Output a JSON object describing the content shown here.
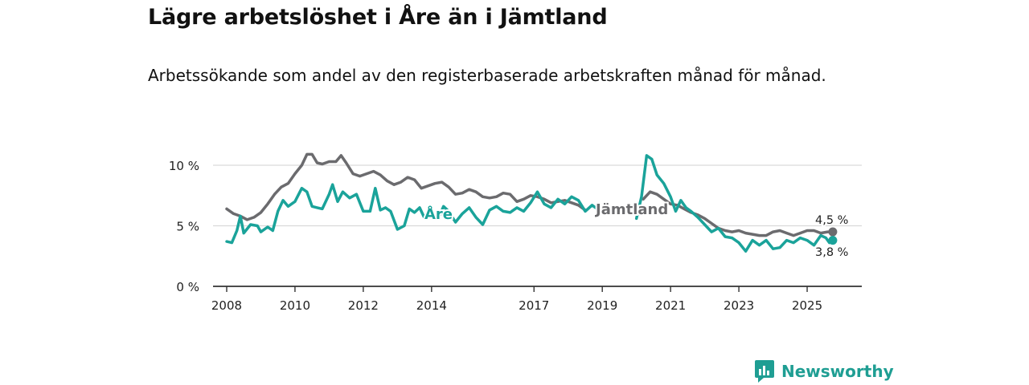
{
  "header": {
    "title": "Lägre arbetslöshet i Åre än i Jämtland",
    "subtitle": "Arbetssökande som andel av den registerbaserade arbetskraften månad för månad."
  },
  "brand": {
    "name": "Newsworthy"
  },
  "colors": {
    "are": "#1aa39a",
    "jamtland": "#6b6b6e",
    "grid": "#d9d9d9",
    "axis": "#333333",
    "brand": "#1f9e93"
  },
  "chart_data": {
    "type": "line",
    "title": "Lägre arbetslöshet i Åre än i Jämtland",
    "subtitle": "Arbetssökande som andel av den registerbaserade arbetskraften månad för månad.",
    "xlabel": "",
    "ylabel": "",
    "xlim": [
      2007.6,
      2026.6
    ],
    "ylim": [
      0,
      10
    ],
    "y_ticks": [
      0,
      5,
      10
    ],
    "y_tick_labels": [
      "0 %",
      "5 %",
      "10 %"
    ],
    "x_ticks": [
      2008,
      2010,
      2012,
      2014,
      2017,
      2019,
      2021,
      2023,
      2025
    ],
    "x_tick_labels": [
      "2008",
      "2010",
      "2012",
      "2014",
      "2017",
      "2019",
      "2021",
      "2023",
      "2025"
    ],
    "grid": true,
    "series": [
      {
        "name": "Jämtland",
        "label": "Jämtland",
        "color": "#6b6b6e",
        "end_label": "4,5 %",
        "points": [
          [
            2008.0,
            6.4
          ],
          [
            2008.2,
            6.0
          ],
          [
            2008.4,
            5.8
          ],
          [
            2008.6,
            5.5
          ],
          [
            2008.8,
            5.7
          ],
          [
            2009.0,
            6.1
          ],
          [
            2009.2,
            6.8
          ],
          [
            2009.4,
            7.6
          ],
          [
            2009.6,
            8.2
          ],
          [
            2009.8,
            8.5
          ],
          [
            2010.0,
            9.3
          ],
          [
            2010.2,
            10.0
          ],
          [
            2010.35,
            10.9
          ],
          [
            2010.5,
            10.9
          ],
          [
            2010.65,
            10.2
          ],
          [
            2010.8,
            10.1
          ],
          [
            2011.0,
            10.3
          ],
          [
            2011.2,
            10.3
          ],
          [
            2011.35,
            10.8
          ],
          [
            2011.5,
            10.2
          ],
          [
            2011.7,
            9.3
          ],
          [
            2011.9,
            9.1
          ],
          [
            2012.1,
            9.3
          ],
          [
            2012.3,
            9.5
          ],
          [
            2012.5,
            9.2
          ],
          [
            2012.7,
            8.7
          ],
          [
            2012.9,
            8.4
          ],
          [
            2013.1,
            8.6
          ],
          [
            2013.3,
            9.0
          ],
          [
            2013.5,
            8.8
          ],
          [
            2013.7,
            8.1
          ],
          [
            2013.9,
            8.3
          ],
          [
            2014.1,
            8.5
          ],
          [
            2014.3,
            8.6
          ],
          [
            2014.5,
            8.2
          ],
          [
            2014.7,
            7.6
          ],
          [
            2014.9,
            7.7
          ],
          [
            2015.1,
            8.0
          ],
          [
            2015.3,
            7.8
          ],
          [
            2015.5,
            7.4
          ],
          [
            2015.7,
            7.3
          ],
          [
            2015.9,
            7.4
          ],
          [
            2016.1,
            7.7
          ],
          [
            2016.3,
            7.6
          ],
          [
            2016.5,
            7.0
          ],
          [
            2016.7,
            7.2
          ],
          [
            2016.9,
            7.5
          ],
          [
            2017.1,
            7.4
          ],
          [
            2017.3,
            7.2
          ],
          [
            2017.5,
            6.9
          ],
          [
            2017.7,
            7.0
          ],
          [
            2017.9,
            7.1
          ],
          [
            2018.1,
            6.9
          ],
          [
            2018.3,
            6.7
          ],
          [
            2018.5,
            6.3
          ],
          [
            2020.2,
            7.2
          ],
          [
            2020.4,
            7.8
          ],
          [
            2020.6,
            7.6
          ],
          [
            2020.8,
            7.2
          ],
          [
            2021.0,
            6.8
          ],
          [
            2021.2,
            6.7
          ],
          [
            2021.4,
            6.4
          ],
          [
            2021.6,
            6.1
          ],
          [
            2021.8,
            5.9
          ],
          [
            2022.0,
            5.6
          ],
          [
            2022.2,
            5.2
          ],
          [
            2022.4,
            4.8
          ],
          [
            2022.6,
            4.6
          ],
          [
            2022.8,
            4.5
          ],
          [
            2023.0,
            4.6
          ],
          [
            2023.2,
            4.4
          ],
          [
            2023.4,
            4.3
          ],
          [
            2023.6,
            4.2
          ],
          [
            2023.8,
            4.2
          ],
          [
            2024.0,
            4.5
          ],
          [
            2024.2,
            4.6
          ],
          [
            2024.4,
            4.4
          ],
          [
            2024.6,
            4.2
          ],
          [
            2024.8,
            4.4
          ],
          [
            2025.0,
            4.6
          ],
          [
            2025.2,
            4.6
          ],
          [
            2025.4,
            4.4
          ],
          [
            2025.6,
            4.5
          ],
          [
            2025.75,
            4.5
          ]
        ]
      },
      {
        "name": "Åre",
        "label": "Åre",
        "color": "#1aa39a",
        "end_label": "3,8 %",
        "points": [
          [
            2008.0,
            3.7
          ],
          [
            2008.15,
            3.6
          ],
          [
            2008.3,
            4.6
          ],
          [
            2008.4,
            5.8
          ],
          [
            2008.5,
            4.4
          ],
          [
            2008.7,
            5.1
          ],
          [
            2008.9,
            5.0
          ],
          [
            2009.0,
            4.5
          ],
          [
            2009.2,
            4.9
          ],
          [
            2009.35,
            4.6
          ],
          [
            2009.5,
            6.2
          ],
          [
            2009.65,
            7.1
          ],
          [
            2009.8,
            6.6
          ],
          [
            2010.0,
            7.0
          ],
          [
            2010.2,
            8.1
          ],
          [
            2010.35,
            7.8
          ],
          [
            2010.5,
            6.6
          ],
          [
            2010.65,
            6.5
          ],
          [
            2010.8,
            6.4
          ],
          [
            2011.0,
            7.6
          ],
          [
            2011.1,
            8.4
          ],
          [
            2011.25,
            7.0
          ],
          [
            2011.4,
            7.8
          ],
          [
            2011.6,
            7.3
          ],
          [
            2011.8,
            7.6
          ],
          [
            2012.0,
            6.2
          ],
          [
            2012.2,
            6.2
          ],
          [
            2012.35,
            8.1
          ],
          [
            2012.5,
            6.3
          ],
          [
            2012.65,
            6.5
          ],
          [
            2012.8,
            6.2
          ],
          [
            2013.0,
            4.7
          ],
          [
            2013.2,
            5.0
          ],
          [
            2013.35,
            6.4
          ],
          [
            2013.5,
            6.1
          ],
          [
            2013.65,
            6.5
          ],
          [
            2013.8,
            5.6
          ],
          [
            2014.0,
            6.2
          ],
          [
            2014.2,
            5.6
          ],
          [
            2014.35,
            6.6
          ],
          [
            2014.5,
            6.2
          ],
          [
            2014.7,
            5.3
          ],
          [
            2014.9,
            6.0
          ],
          [
            2015.1,
            6.5
          ],
          [
            2015.3,
            5.7
          ],
          [
            2015.5,
            5.1
          ],
          [
            2015.7,
            6.3
          ],
          [
            2015.9,
            6.6
          ],
          [
            2016.1,
            6.2
          ],
          [
            2016.3,
            6.1
          ],
          [
            2016.5,
            6.5
          ],
          [
            2016.7,
            6.2
          ],
          [
            2016.9,
            6.9
          ],
          [
            2017.1,
            7.8
          ],
          [
            2017.3,
            6.8
          ],
          [
            2017.5,
            6.5
          ],
          [
            2017.7,
            7.2
          ],
          [
            2017.9,
            6.8
          ],
          [
            2018.1,
            7.4
          ],
          [
            2018.3,
            7.1
          ],
          [
            2018.5,
            6.2
          ],
          [
            2018.7,
            6.7
          ],
          [
            2018.9,
            6.3
          ],
          [
            2020.0,
            5.6
          ],
          [
            2020.15,
            7.4
          ],
          [
            2020.3,
            10.8
          ],
          [
            2020.45,
            10.5
          ],
          [
            2020.6,
            9.2
          ],
          [
            2020.8,
            8.5
          ],
          [
            2021.0,
            7.4
          ],
          [
            2021.15,
            6.2
          ],
          [
            2021.3,
            7.1
          ],
          [
            2021.45,
            6.5
          ],
          [
            2021.6,
            6.2
          ],
          [
            2021.8,
            5.7
          ],
          [
            2022.0,
            5.1
          ],
          [
            2022.2,
            4.5
          ],
          [
            2022.4,
            4.8
          ],
          [
            2022.6,
            4.1
          ],
          [
            2022.8,
            4.0
          ],
          [
            2023.0,
            3.6
          ],
          [
            2023.2,
            2.9
          ],
          [
            2023.4,
            3.8
          ],
          [
            2023.6,
            3.4
          ],
          [
            2023.8,
            3.8
          ],
          [
            2024.0,
            3.1
          ],
          [
            2024.2,
            3.2
          ],
          [
            2024.4,
            3.8
          ],
          [
            2024.6,
            3.6
          ],
          [
            2024.8,
            4.0
          ],
          [
            2025.0,
            3.8
          ],
          [
            2025.2,
            3.4
          ],
          [
            2025.4,
            4.2
          ],
          [
            2025.55,
            4.0
          ],
          [
            2025.65,
            3.6
          ],
          [
            2025.75,
            3.8
          ]
        ]
      }
    ]
  }
}
